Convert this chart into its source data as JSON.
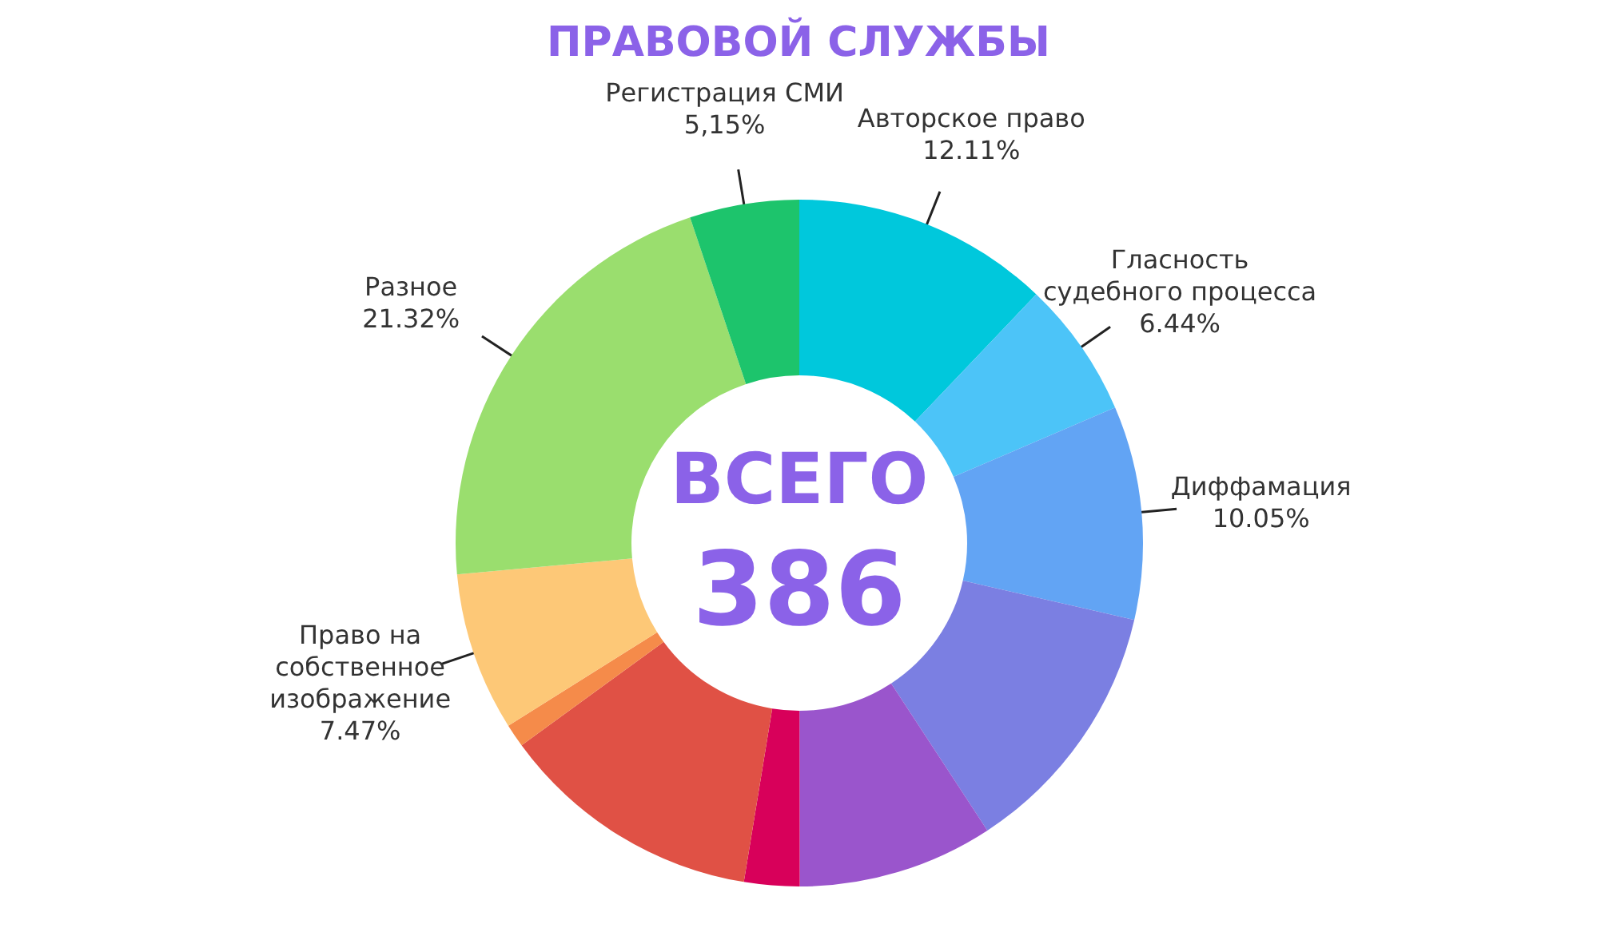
{
  "chart_data": {
    "type": "donut",
    "title": "ПРАВОВОЙ СЛУЖБЫ",
    "categories": [
      "Авторское право",
      "Гласность\nсудебного процесса",
      "Диффамация",
      null,
      null,
      null,
      null,
      null,
      "Право на\nсобственное\nизображение",
      "Разное",
      "Регистрация СМИ"
    ],
    "values": [
      12.11,
      6.44,
      10.05,
      12.2,
      9.2,
      2.6,
      12.4,
      1.1,
      7.47,
      21.32,
      5.15
    ],
    "value_labels": [
      "12.11%",
      "6.44%",
      "10.05%",
      null,
      null,
      null,
      null,
      null,
      "7.47%",
      "21.32%",
      "5,15%"
    ],
    "colors": [
      "#00c8dc",
      "#4cc4f8",
      "#62a4f4",
      "#7b7fe2",
      "#9a55cc",
      "#d8005a",
      "#e05145",
      "#f58b4a",
      "#fdc877",
      "#9ade6e",
      "#1dc46c"
    ],
    "annotations": [
      "ВСЕГО",
      "386"
    ],
    "legend": false
  }
}
